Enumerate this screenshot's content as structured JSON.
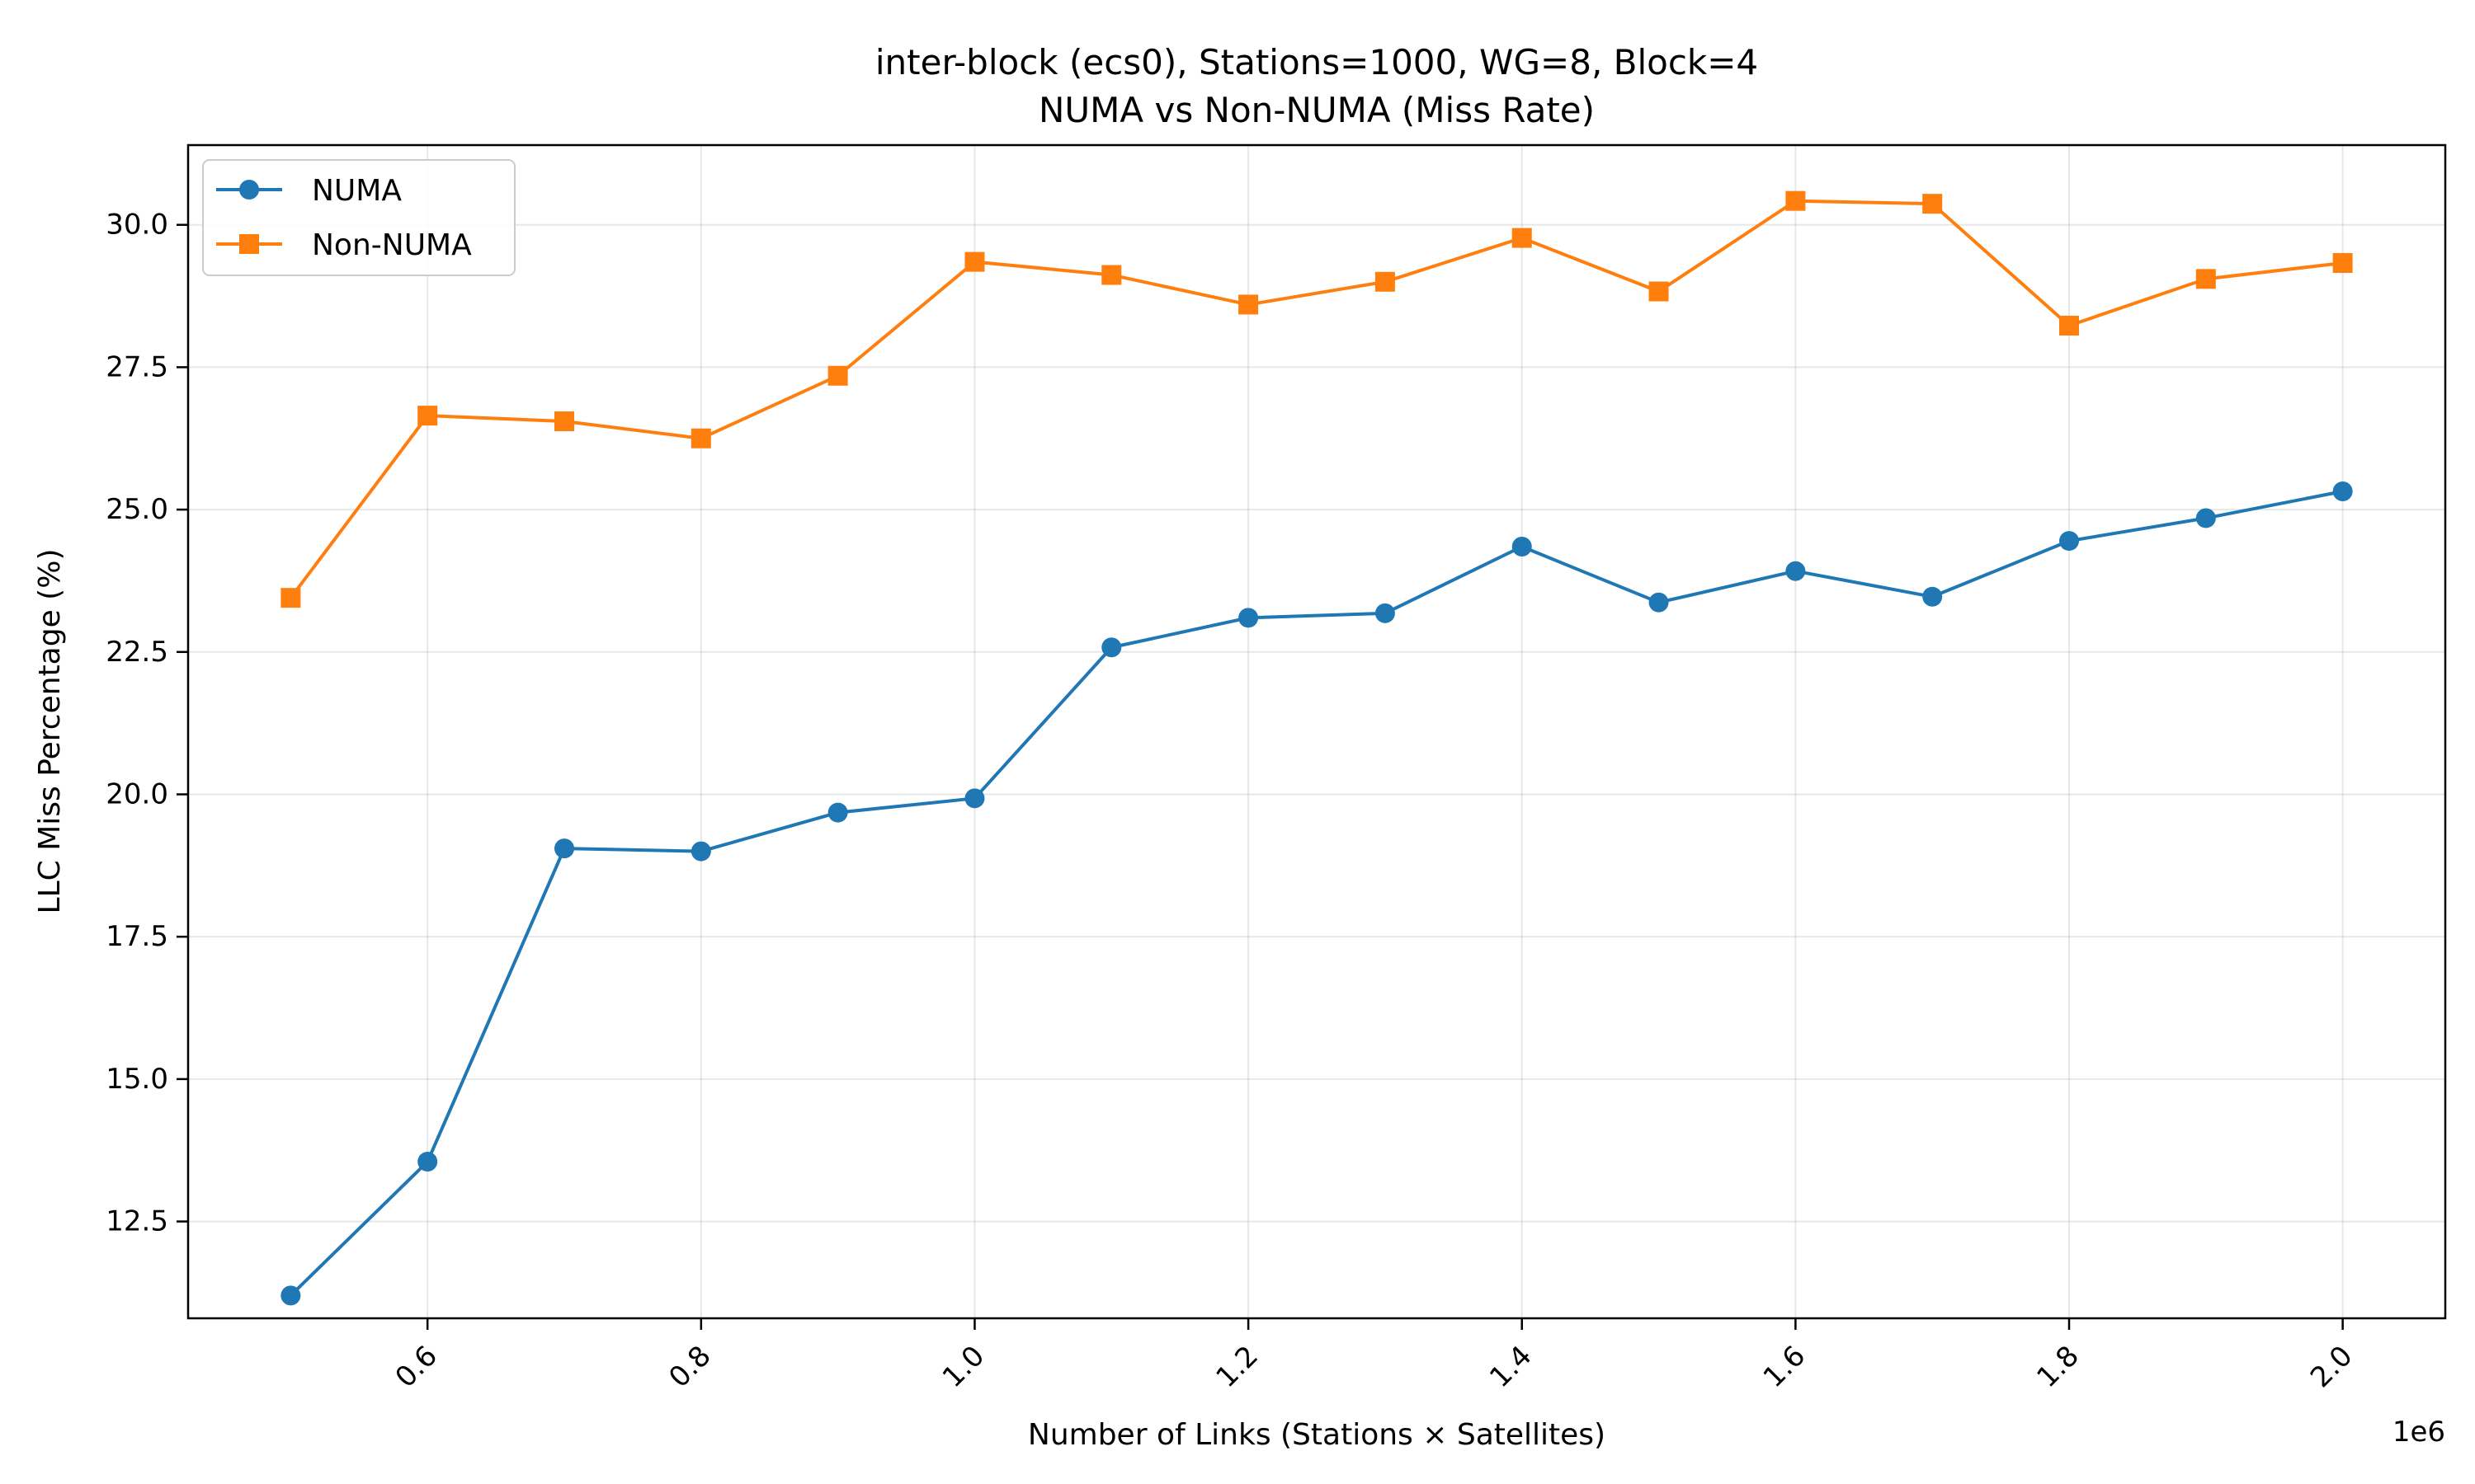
{
  "chart_data": {
    "type": "line",
    "title_line1": "inter-block (ecs0), Stations=1000, WG=8, Block=4",
    "title_line2": "NUMA vs Non-NUMA (Miss Rate)",
    "xlabel": "Number of Links (Stations × Satellites)",
    "ylabel": "LLC Miss Percentage (%)",
    "x_offset_label": "1e6",
    "xlim": [
      0.425,
      2.075
    ],
    "ylim": [
      10.8,
      31.4
    ],
    "x_ticks": [
      0.6,
      0.8,
      1.0,
      1.2,
      1.4,
      1.6,
      1.8,
      2.0
    ],
    "x_tick_labels": [
      "0.6",
      "0.8",
      "1.0",
      "1.2",
      "1.4",
      "1.6",
      "1.8",
      "2.0"
    ],
    "y_ticks": [
      12.5,
      15.0,
      17.5,
      20.0,
      22.5,
      25.0,
      27.5,
      30.0
    ],
    "y_tick_labels": [
      "12.5",
      "15.0",
      "17.5",
      "20.0",
      "22.5",
      "25.0",
      "27.5",
      "30.0"
    ],
    "grid": true,
    "legend_position": "top-left",
    "x": [
      0.5,
      0.6,
      0.7,
      0.8,
      0.9,
      1.0,
      1.1,
      1.2,
      1.3,
      1.4,
      1.5,
      1.6,
      1.7,
      1.8,
      1.9,
      2.0
    ],
    "series": [
      {
        "name": "NUMA",
        "color": "#1f77b4",
        "marker": "circle",
        "values": [
          11.2,
          13.55,
          19.05,
          19.0,
          19.68,
          19.93,
          22.58,
          23.1,
          23.18,
          24.35,
          23.37,
          23.92,
          23.47,
          24.45,
          24.85,
          25.32
        ]
      },
      {
        "name": "Non-NUMA",
        "color": "#ff7f0e",
        "marker": "square",
        "values": [
          23.45,
          26.65,
          26.55,
          26.25,
          27.35,
          29.35,
          29.12,
          28.6,
          29.0,
          29.77,
          28.83,
          30.42,
          30.37,
          28.23,
          29.05,
          29.33
        ]
      }
    ]
  }
}
